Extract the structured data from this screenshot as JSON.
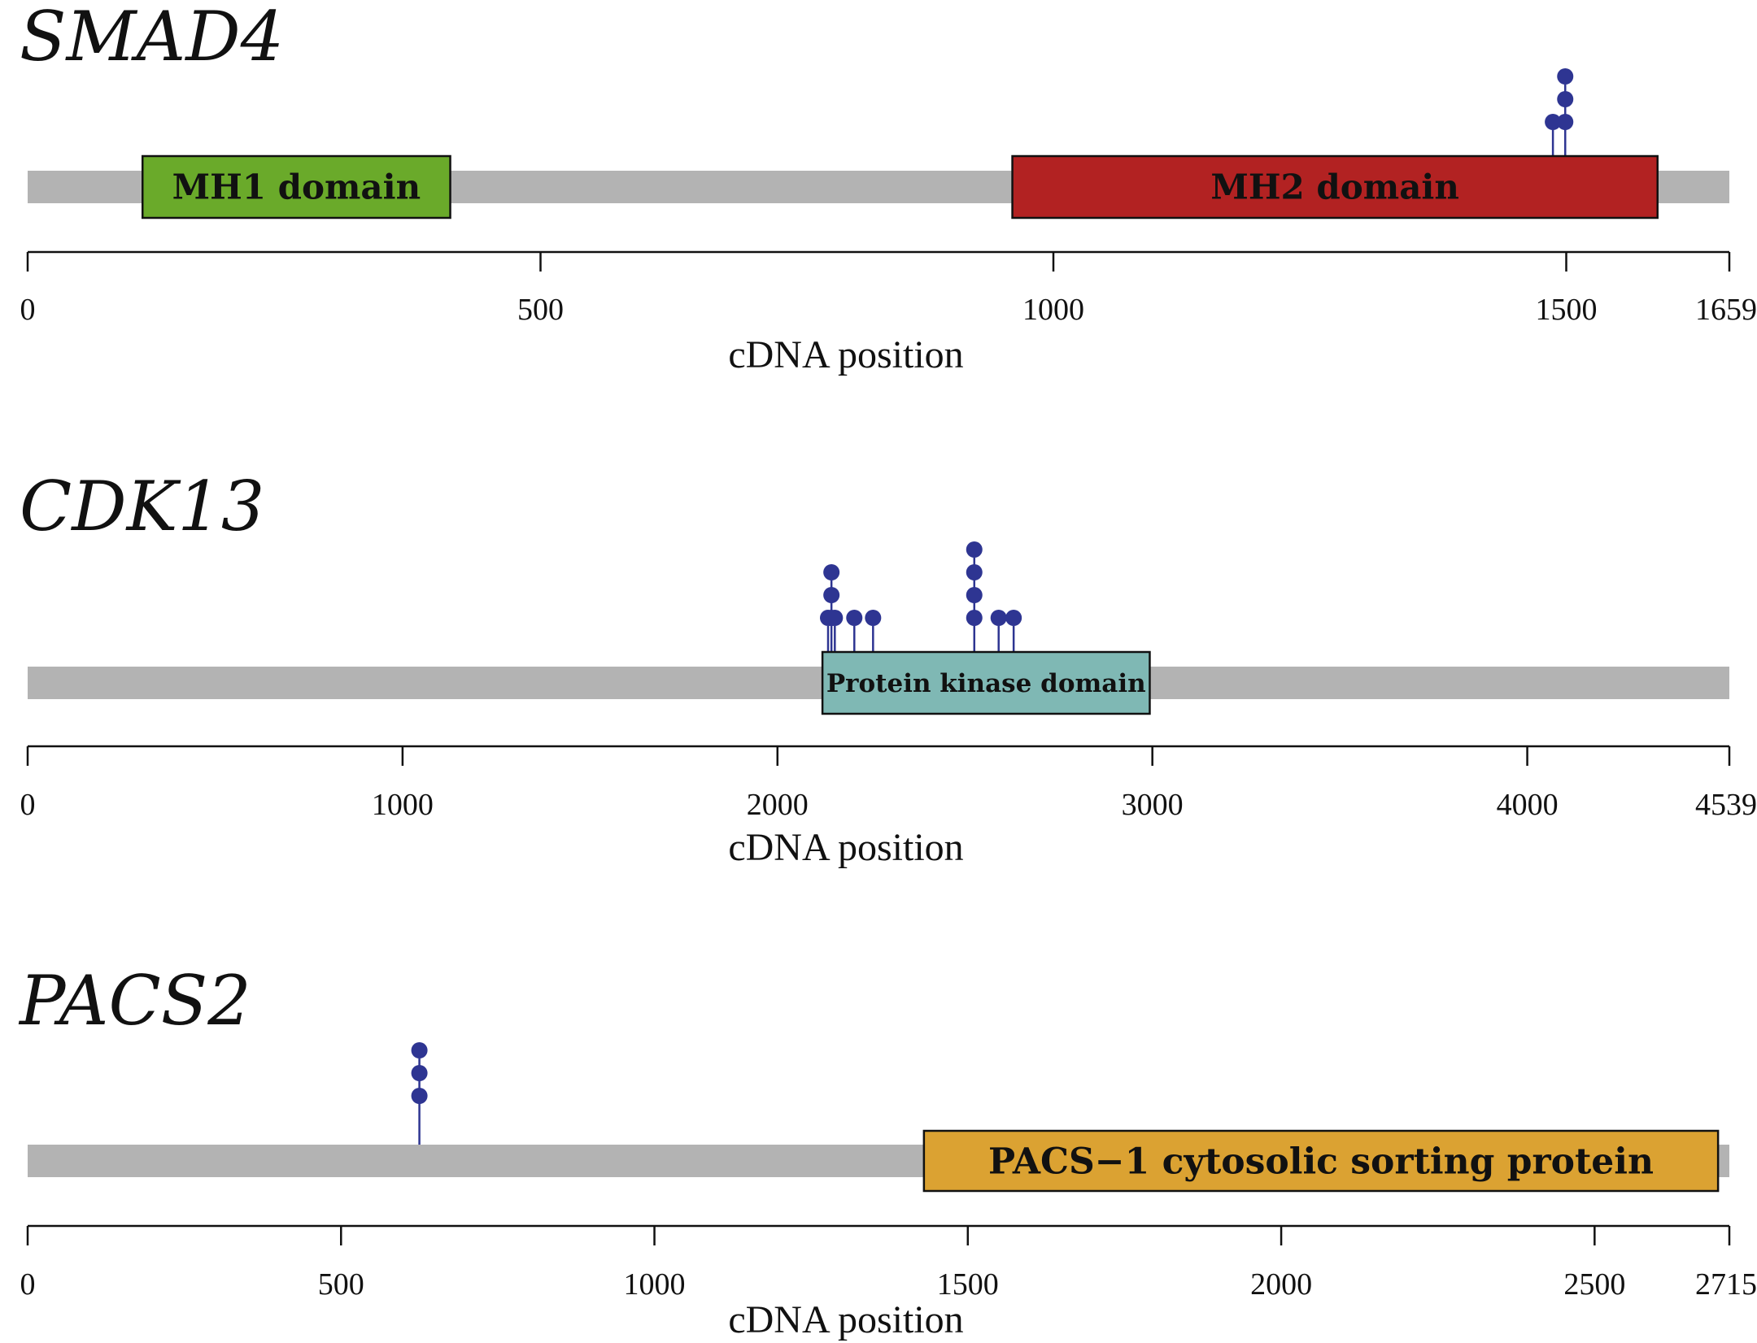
{
  "colors": {
    "backbone": "#b3b3b3",
    "lollipop": "#2e3592",
    "axis": "#111111"
  },
  "panels": [
    {
      "gene": "SMAD4",
      "length": 1659,
      "xlabel": "cDNA position",
      "ticks": [
        0,
        500,
        1000,
        1500
      ],
      "domains": [
        {
          "label": "MH1 domain",
          "start": 112,
          "end": 412,
          "color": "#6aaa2a"
        },
        {
          "label": "MH2 domain",
          "start": 960,
          "end": 1589,
          "color": "#b22222"
        }
      ],
      "mutations": [
        {
          "pos": 1487,
          "count": 1
        },
        {
          "pos": 1499,
          "count": 3
        }
      ]
    },
    {
      "gene": "CDK13",
      "length": 4539,
      "xlabel": "cDNA position",
      "ticks": [
        0,
        1000,
        2000,
        3000,
        4000
      ],
      "domains": [
        {
          "label": "Protein kinase domain",
          "start": 2120,
          "end": 2993,
          "color": "#7fb8b4"
        }
      ],
      "mutations": [
        {
          "pos": 2135,
          "count": 1
        },
        {
          "pos": 2144,
          "count": 3
        },
        {
          "pos": 2153,
          "count": 1
        },
        {
          "pos": 2205,
          "count": 1
        },
        {
          "pos": 2255,
          "count": 1
        },
        {
          "pos": 2525,
          "count": 4
        },
        {
          "pos": 2590,
          "count": 1
        },
        {
          "pos": 2630,
          "count": 1
        }
      ]
    },
    {
      "gene": "PACS2",
      "length": 2715,
      "xlabel": "cDNA position",
      "ticks": [
        0,
        500,
        1000,
        1500,
        2000,
        2500
      ],
      "domains": [
        {
          "label": "PACS−1 cytosolic sorting protein",
          "start": 1430,
          "end": 2697,
          "color": "#dba232"
        }
      ],
      "mutations": [
        {
          "pos": 625,
          "count": 3
        }
      ]
    }
  ]
}
